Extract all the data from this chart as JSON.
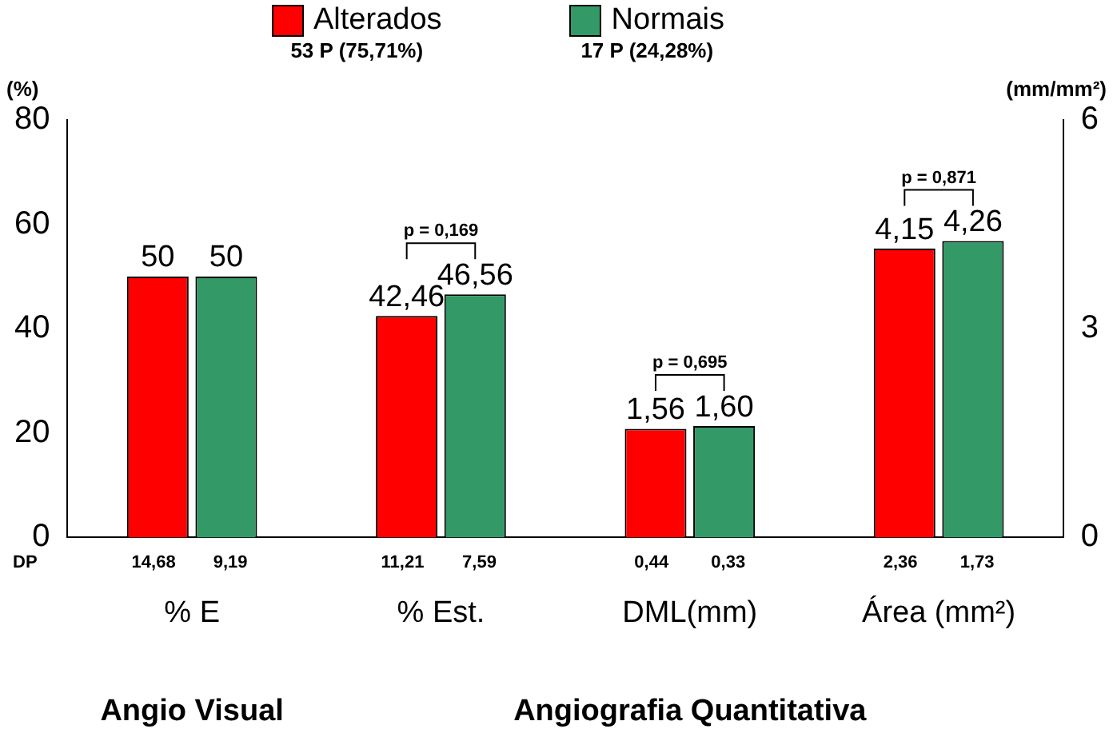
{
  "chart_data": {
    "type": "bar",
    "ylabel": "(%)",
    "y2label": "(mm/mm²)",
    "categories": [
      "% E",
      "% Est.",
      "DML(mm)",
      "Área (mm²)"
    ],
    "series": [
      {
        "name": "Alterados",
        "color": "#ff0000",
        "values": [
          50,
          42.46,
          null,
          null
        ],
        "value_labels": [
          "50",
          "42,46",
          null,
          null
        ]
      },
      {
        "name": "Normais",
        "color": "#339966",
        "values": [
          50,
          46.56,
          null,
          null
        ],
        "value_labels": [
          "50",
          "46,56",
          null,
          null
        ]
      },
      {
        "color": "#ff0000",
        "axis": "y2",
        "values": [
          null,
          null,
          1.56,
          4.15
        ],
        "value_labels": [
          null,
          null,
          "1,56",
          "4,15"
        ]
      },
      {
        "color": "#339966",
        "axis": "y2",
        "values": [
          null,
          null,
          1.6,
          4.26
        ],
        "value_labels": [
          null,
          null,
          "1,60",
          "4,26"
        ]
      }
    ],
    "ylim": [
      0,
      80
    ],
    "yticks": [
      0,
      20,
      40,
      60,
      80
    ],
    "y2lim": [
      0,
      6
    ],
    "y2ticks": [
      0,
      3,
      6
    ],
    "grid": false,
    "legend": "top",
    "annotations": [
      "53 P (75,71%)",
      "17 P (24,28%)",
      "DP",
      "14,68",
      "9,19",
      "11,21",
      "7,59",
      "0,44",
      "0,33",
      "2,36",
      "1,73",
      "p = 0,169",
      "p = 0,695",
      "p = 0,871",
      "Angio Visual",
      "Angiografia Quantitativa"
    ]
  }
}
